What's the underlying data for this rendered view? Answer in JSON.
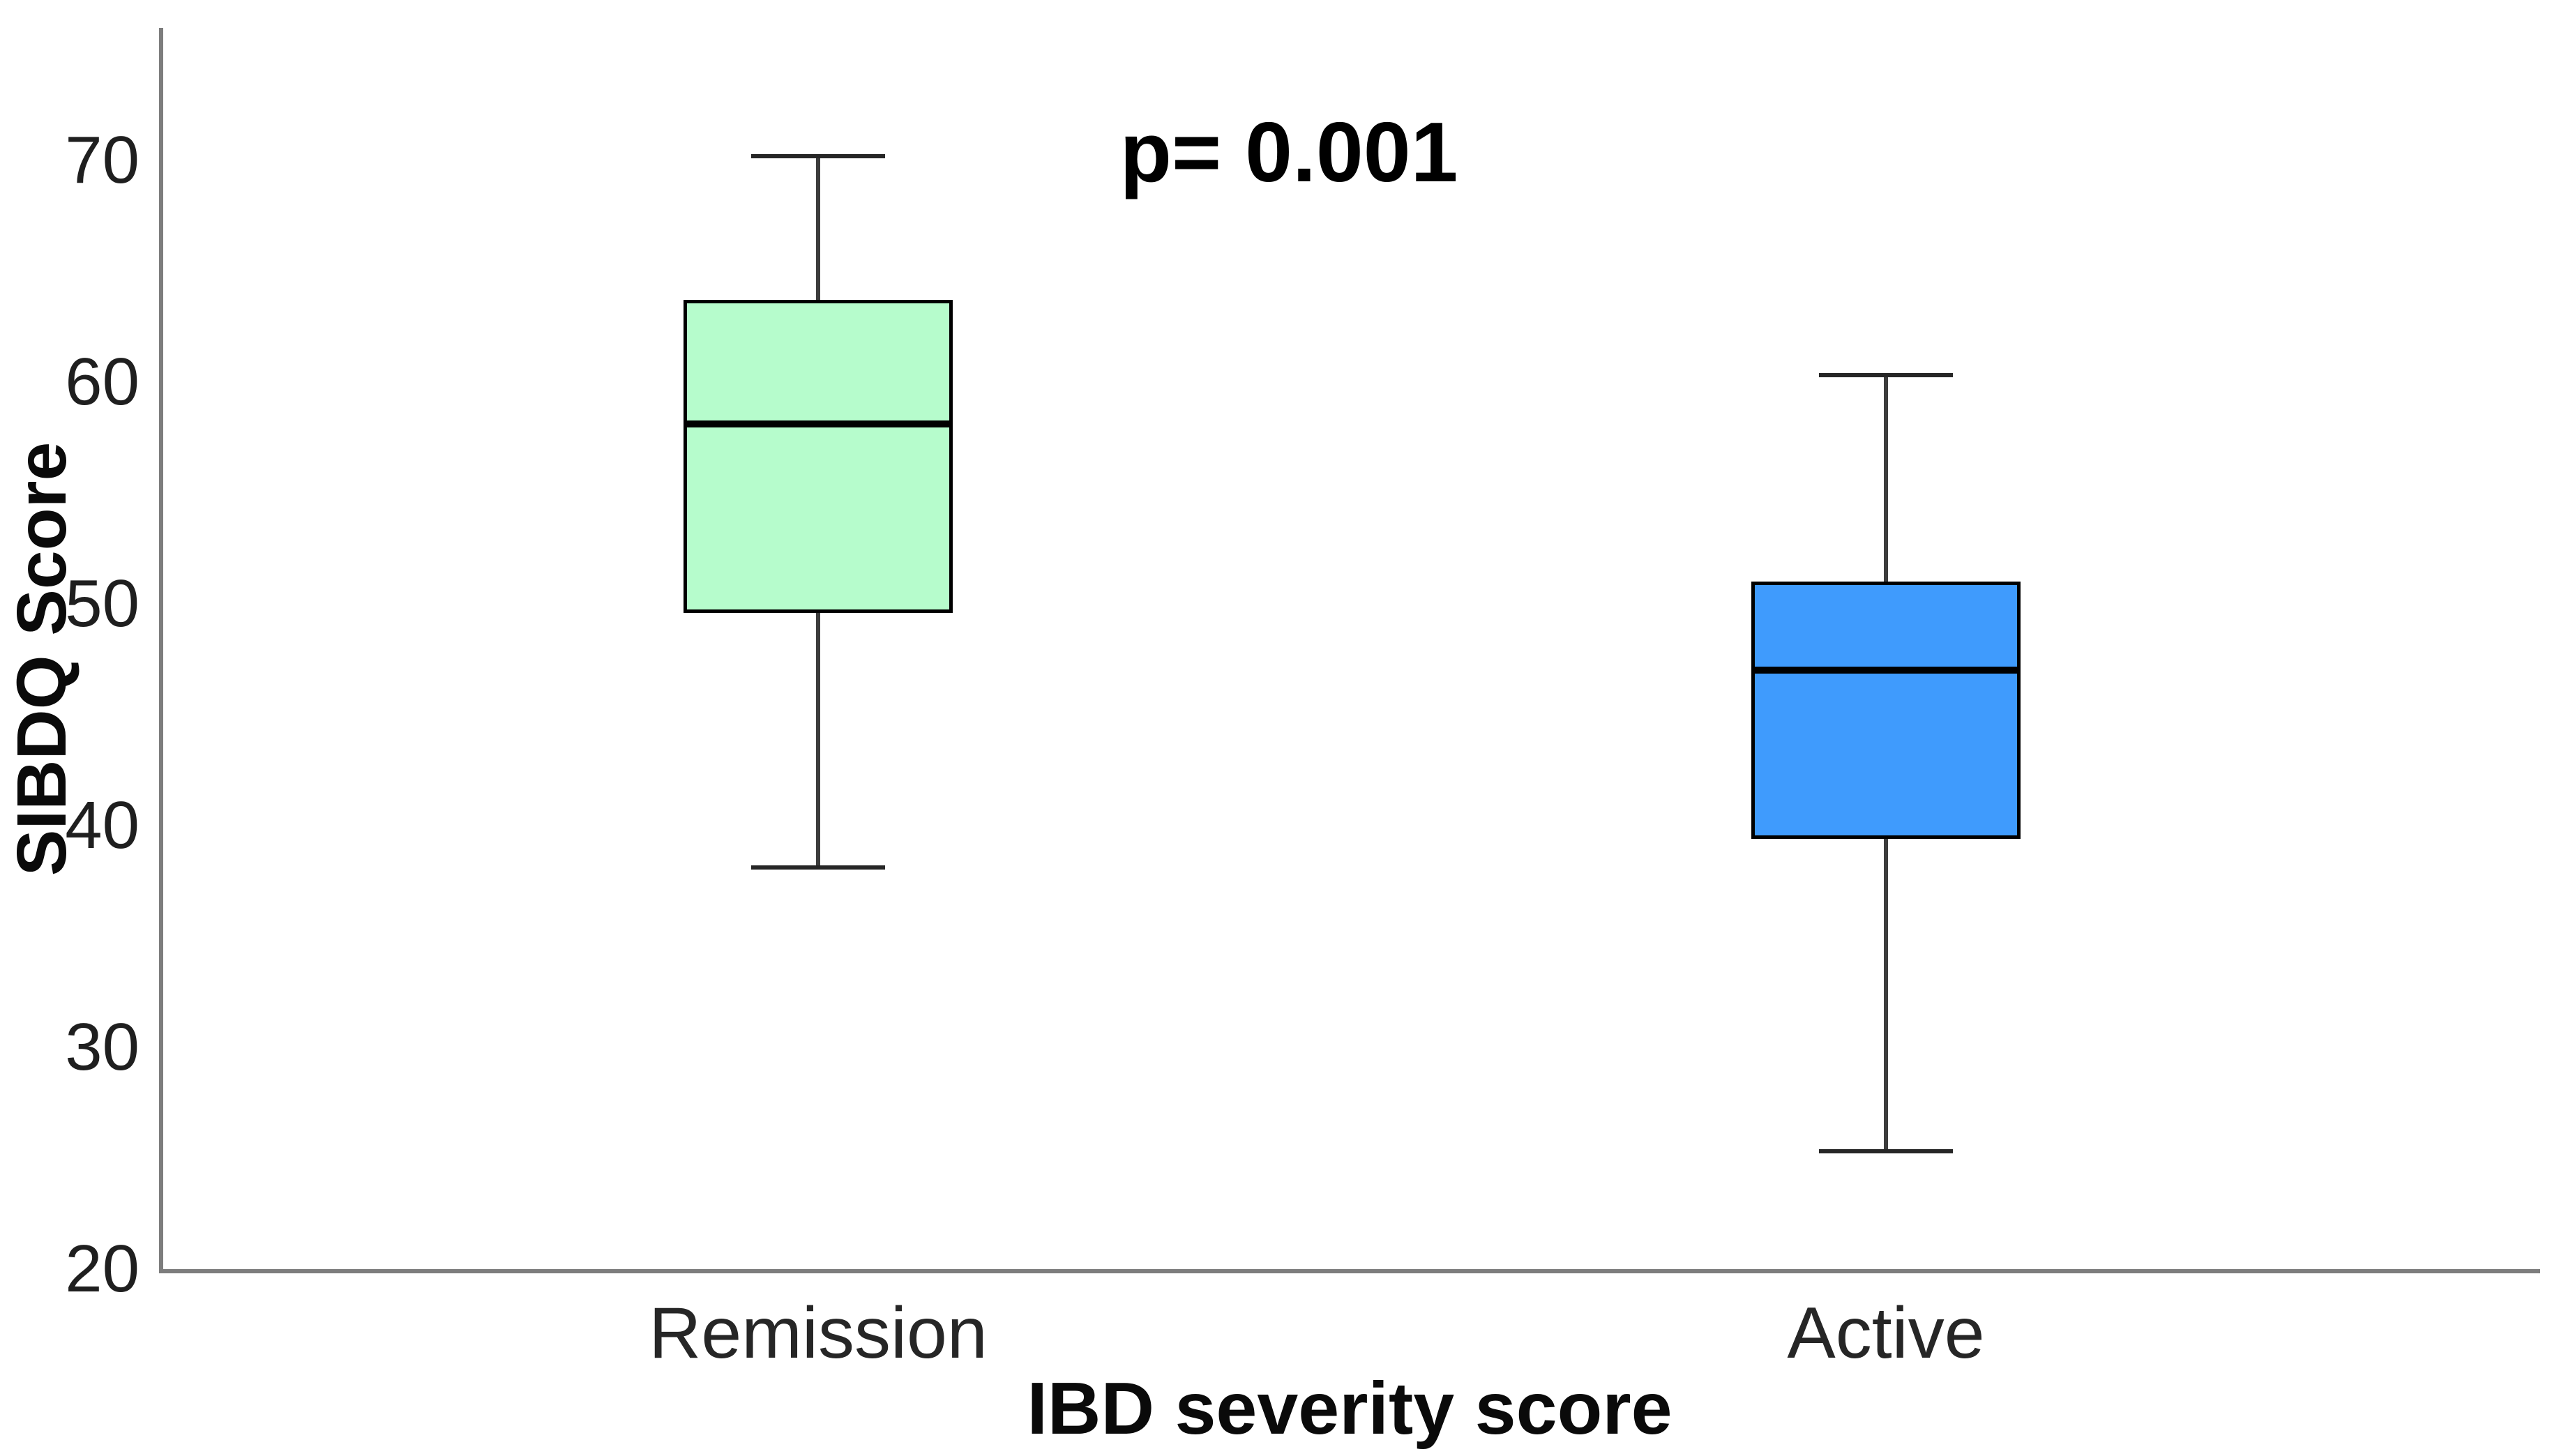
{
  "chart_data": {
    "type": "box",
    "title": "",
    "annotation": "p= 0.001",
    "xlabel": "IBD severity score",
    "ylabel": "SIBDQ Score",
    "ylim": [
      20,
      76
    ],
    "yticks": [
      70,
      60,
      50,
      40,
      30,
      20
    ],
    "grid": false,
    "legend": "none",
    "categories": [
      "Remission",
      "Active"
    ],
    "series": [
      {
        "name": "Remission",
        "fill_color": "#b6fccc",
        "whisker_low": 38.1,
        "q1": 49.6,
        "median": 58.1,
        "q3": 63.7,
        "whisker_high": 70.2
      },
      {
        "name": "Active",
        "fill_color": "#3f9bfd",
        "whisker_low": 25.3,
        "q1": 39.4,
        "median": 47.0,
        "q3": 51.0,
        "whisker_high": 60.3
      }
    ],
    "style_colors": {
      "axis_line": "#7d7d7d",
      "box_border": "#000000",
      "median_line": "#000000",
      "whisker_line": "#3c3c3c",
      "tick_label": "#1f1f1f",
      "background": "#ffffff"
    }
  }
}
